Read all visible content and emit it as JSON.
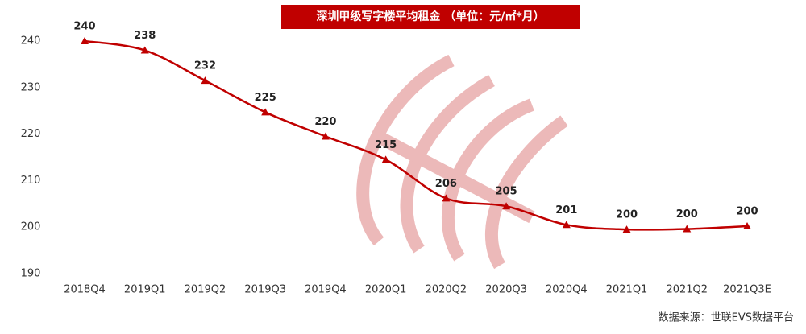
{
  "chart_data": {
    "type": "line",
    "title": "深圳甲级写字楼平均租金 （单位：元/㎡*月）",
    "source": "数据来源：世联EVS数据平台",
    "categories": [
      "2018Q4",
      "2019Q1",
      "2019Q2",
      "2019Q3",
      "2019Q4",
      "2020Q1",
      "2020Q2",
      "2020Q3",
      "2020Q4",
      "2021Q1",
      "2021Q2",
      "2021Q3E"
    ],
    "series": [
      {
        "name": "平均租金",
        "color": "#c00000",
        "values": [
          240,
          238,
          231.5,
          224.7,
          219.5,
          214.5,
          206.2,
          204.5,
          200.5,
          199.5,
          199.6,
          200.2
        ],
        "value_labels": [
          "240",
          "238",
          "232",
          "225",
          "220",
          "215",
          "206",
          "205",
          "201",
          "200",
          "200",
          "200"
        ]
      }
    ],
    "ylim": [
      190,
      240
    ],
    "yticks": [
      190,
      200,
      210,
      220,
      230,
      240
    ],
    "grid": false
  }
}
